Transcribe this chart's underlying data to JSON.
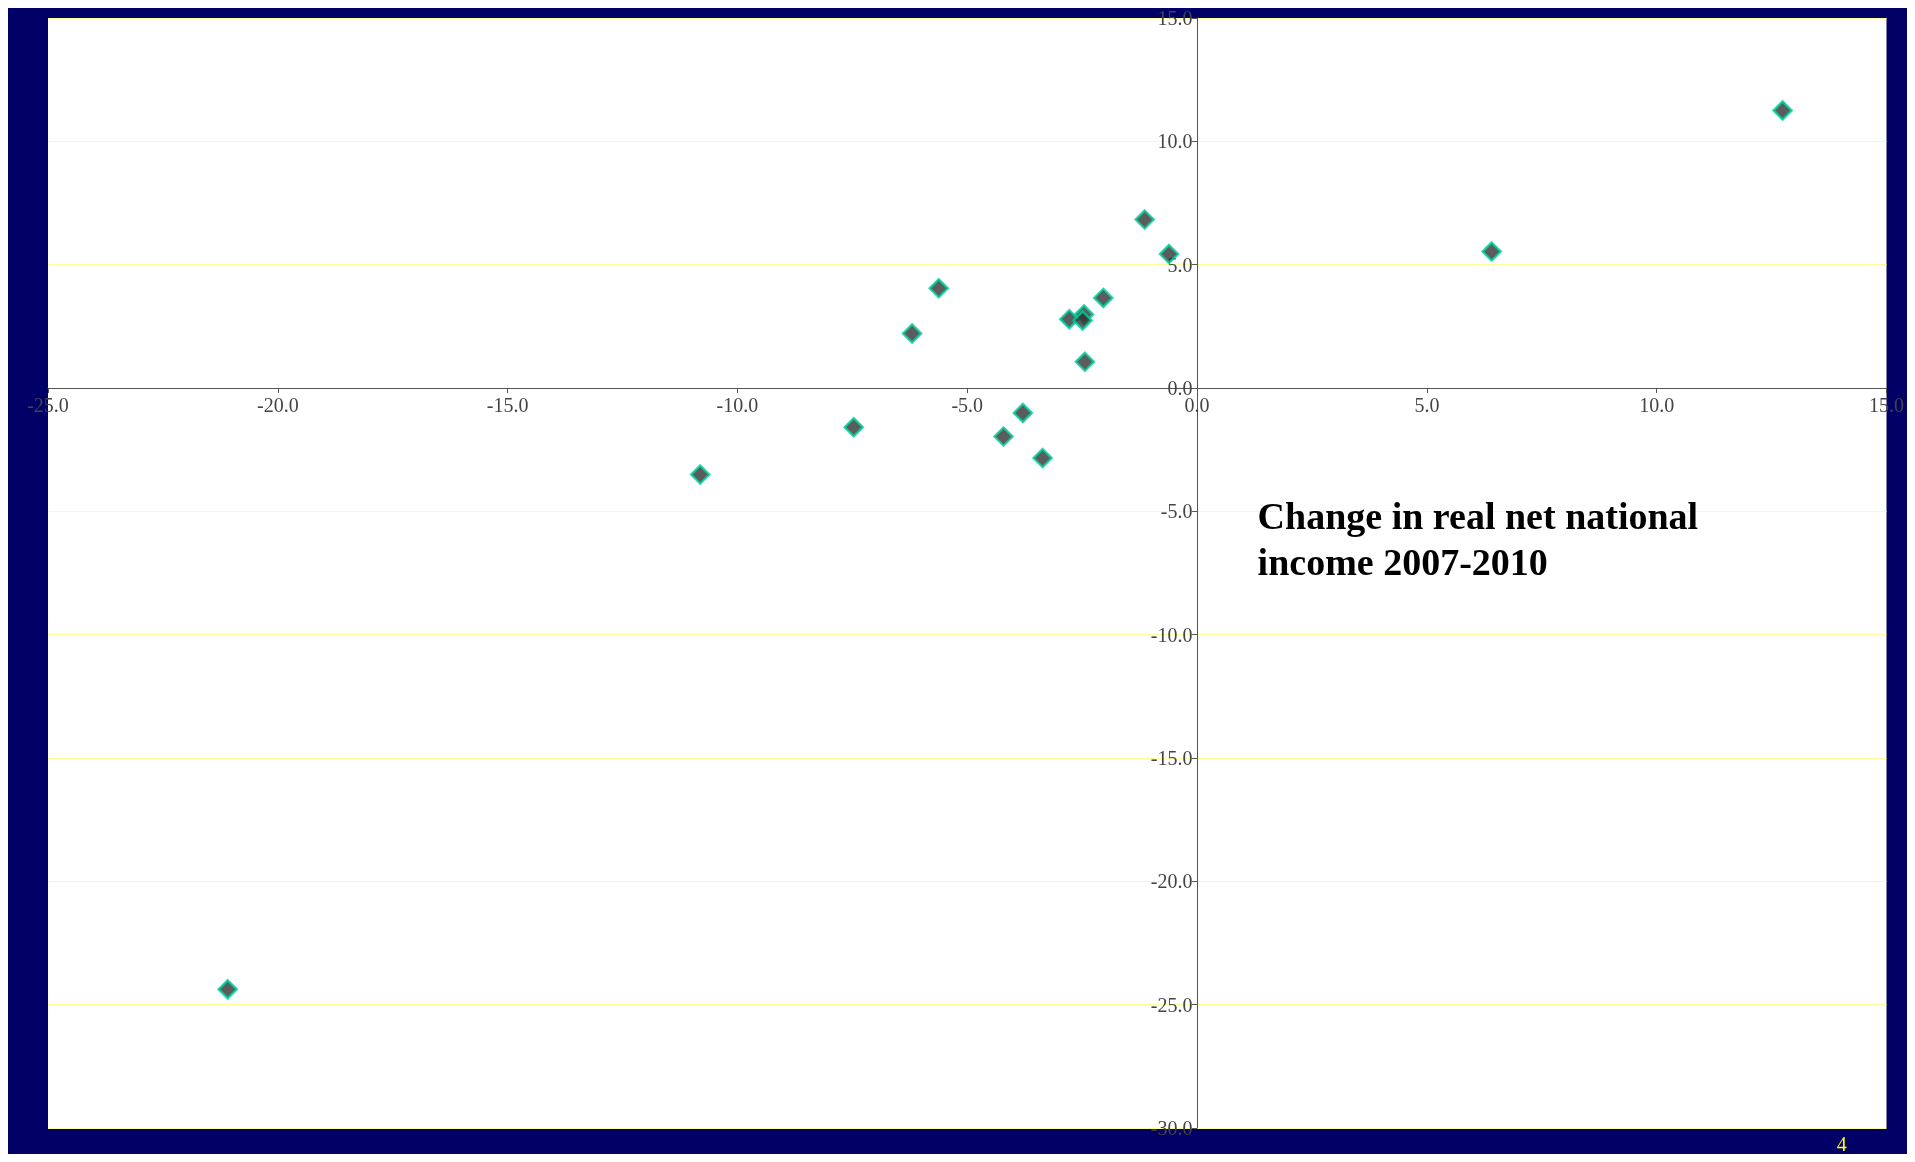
{
  "chart_data": {
    "type": "scatter",
    "title": "Change in real net national income 2007-2010",
    "x": [
      12.74,
      6.41,
      -1.14,
      -0.61,
      -5.62,
      -6.2,
      -2.04,
      -2.46,
      -2.78,
      -2.49,
      -2.44,
      -3.79,
      -4.21,
      -3.36,
      -7.47,
      -10.81,
      -21.09
    ],
    "values": [
      11.25,
      5.53,
      6.83,
      5.43,
      4.04,
      2.21,
      3.65,
      2.98,
      2.79,
      2.74,
      1.06,
      -1.01,
      -1.97,
      -2.84,
      -1.59,
      -3.51,
      -24.38
    ],
    "color": "#333333",
    "marker": "diamond",
    "grid": "y",
    "xlim": [
      -25,
      15
    ],
    "xticks": [
      {
        "value": -25,
        "label": "-25.0"
      },
      {
        "value": -20,
        "label": "-20.0"
      },
      {
        "value": -15,
        "label": "-15.0"
      },
      {
        "value": -10,
        "label": "-10.0"
      },
      {
        "value": -5,
        "label": "-5.0"
      },
      {
        "value": 0,
        "label": "0.0"
      },
      {
        "value": 5,
        "label": "5.0"
      },
      {
        "value": 10,
        "label": "10.0"
      },
      {
        "value": 15,
        "label": "15.0"
      }
    ],
    "ylim": [
      -30,
      15
    ],
    "yticks": [
      {
        "value": -30,
        "label": "-30.0"
      },
      {
        "value": -25,
        "label": "-25.0"
      },
      {
        "value": -20,
        "label": "-20.0"
      },
      {
        "value": -15,
        "label": "-15.0"
      },
      {
        "value": -10,
        "label": "-10.0"
      },
      {
        "value": -5,
        "label": "-5.0"
      },
      {
        "value": 0,
        "label": "0.0"
      },
      {
        "value": 5,
        "label": "5.0"
      },
      {
        "value": 10,
        "label": "10.0"
      },
      {
        "value": 15,
        "label": "15.0"
      }
    ],
    "annotations": [
      "4"
    ]
  }
}
